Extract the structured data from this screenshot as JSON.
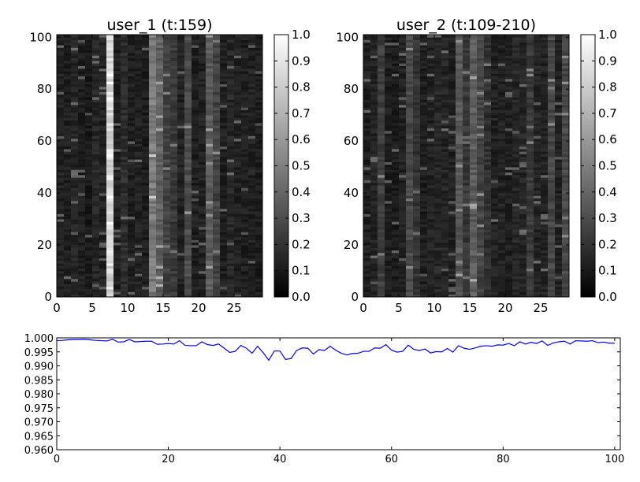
{
  "chart_data": [
    {
      "type": "heatmap",
      "title": "user_1 (t:159)",
      "x_range": [
        0,
        29
      ],
      "y_range": [
        0,
        101
      ],
      "x_ticks": [
        0,
        5,
        10,
        15,
        20,
        25
      ],
      "y_ticks": [
        0,
        20,
        40,
        60,
        80,
        100
      ],
      "colormap": "gray",
      "value_range": [
        0.0,
        1.0
      ],
      "colorbar_ticks": [
        "0.0",
        "0.1",
        "0.2",
        "0.3",
        "0.4",
        "0.5",
        "0.6",
        "0.7",
        "0.8",
        "0.9",
        "1.0"
      ],
      "column_means": [
        0.13,
        0.12,
        0.14,
        0.12,
        0.1,
        0.15,
        0.13,
        0.84,
        0.12,
        0.18,
        0.12,
        0.13,
        0.11,
        0.48,
        0.38,
        0.26,
        0.22,
        0.13,
        0.3,
        0.12,
        0.13,
        0.36,
        0.26,
        0.12,
        0.15,
        0.13,
        0.12,
        0.13,
        0.11
      ],
      "grid": false
    },
    {
      "type": "heatmap",
      "title": "user_2 (t:109-210)",
      "x_range": [
        0,
        29
      ],
      "y_range": [
        0,
        101
      ],
      "x_ticks": [
        0,
        5,
        10,
        15,
        20,
        25
      ],
      "y_ticks": [
        0,
        20,
        40,
        60,
        80,
        100
      ],
      "colormap": "gray",
      "value_range": [
        0.0,
        1.0
      ],
      "colorbar_ticks": [
        "0.0",
        "0.1",
        "0.2",
        "0.3",
        "0.4",
        "0.5",
        "0.6",
        "0.7",
        "0.8",
        "0.9",
        "1.0"
      ],
      "column_means": [
        0.12,
        0.14,
        0.24,
        0.12,
        0.11,
        0.13,
        0.28,
        0.2,
        0.12,
        0.13,
        0.15,
        0.14,
        0.13,
        0.34,
        0.22,
        0.36,
        0.27,
        0.19,
        0.13,
        0.13,
        0.12,
        0.15,
        0.14,
        0.23,
        0.14,
        0.13,
        0.28,
        0.13,
        0.28
      ],
      "grid": false
    },
    {
      "type": "line",
      "title": "",
      "xlabel": "",
      "ylabel": "",
      "xlim": [
        0,
        101
      ],
      "ylim": [
        0.96,
        1.0
      ],
      "x_ticks": [
        0,
        20,
        40,
        60,
        80,
        100
      ],
      "y_ticks": [
        "0.960",
        "0.965",
        "0.970",
        "0.975",
        "0.980",
        "0.985",
        "0.990",
        "0.995",
        "1.000"
      ],
      "color": "#0000ff",
      "x": [
        0,
        1,
        2,
        3,
        4,
        5,
        6,
        7,
        8,
        9,
        10,
        11,
        12,
        13,
        14,
        15,
        16,
        17,
        18,
        19,
        20,
        21,
        22,
        23,
        24,
        25,
        26,
        27,
        28,
        29,
        30,
        31,
        32,
        33,
        34,
        35,
        36,
        37,
        38,
        39,
        40,
        41,
        42,
        43,
        44,
        45,
        46,
        47,
        48,
        49,
        50,
        51,
        52,
        53,
        54,
        55,
        56,
        57,
        58,
        59,
        60,
        61,
        62,
        63,
        64,
        65,
        66,
        67,
        68,
        69,
        70,
        71,
        72,
        73,
        74,
        75,
        76,
        77,
        78,
        79,
        80,
        81,
        82,
        83,
        84,
        85,
        86,
        87,
        88,
        89,
        90,
        91,
        92,
        93,
        94,
        95,
        96,
        97,
        98,
        99,
        100
      ],
      "y": [
        0.999,
        0.9991,
        0.9993,
        0.9994,
        0.9994,
        0.9995,
        0.9993,
        0.9991,
        0.999,
        0.9989,
        0.9995,
        0.9985,
        0.9986,
        0.9994,
        0.9986,
        0.9987,
        0.9988,
        0.9988,
        0.9977,
        0.9978,
        0.998,
        0.9978,
        0.999,
        0.9973,
        0.9972,
        0.9972,
        0.9986,
        0.9976,
        0.9973,
        0.9978,
        0.9963,
        0.9948,
        0.9952,
        0.9973,
        0.9963,
        0.9945,
        0.997,
        0.9947,
        0.992,
        0.9953,
        0.9953,
        0.9923,
        0.9926,
        0.9955,
        0.9964,
        0.9963,
        0.9942,
        0.9958,
        0.9955,
        0.997,
        0.9956,
        0.9945,
        0.9939,
        0.9944,
        0.9945,
        0.9952,
        0.9952,
        0.9964,
        0.9963,
        0.9976,
        0.9956,
        0.9949,
        0.9952,
        0.9974,
        0.9959,
        0.9955,
        0.996,
        0.9946,
        0.9951,
        0.995,
        0.9962,
        0.9949,
        0.9972,
        0.9963,
        0.9959,
        0.9964,
        0.997,
        0.9972,
        0.997,
        0.9975,
        0.9974,
        0.998,
        0.9972,
        0.9986,
        0.9978,
        0.9984,
        0.998,
        0.9989,
        0.9973,
        0.9982,
        0.9986,
        0.9988,
        0.9978,
        0.999,
        0.9989,
        0.9988,
        0.999,
        0.9983,
        0.9985,
        0.9981,
        0.9981
      ]
    }
  ]
}
